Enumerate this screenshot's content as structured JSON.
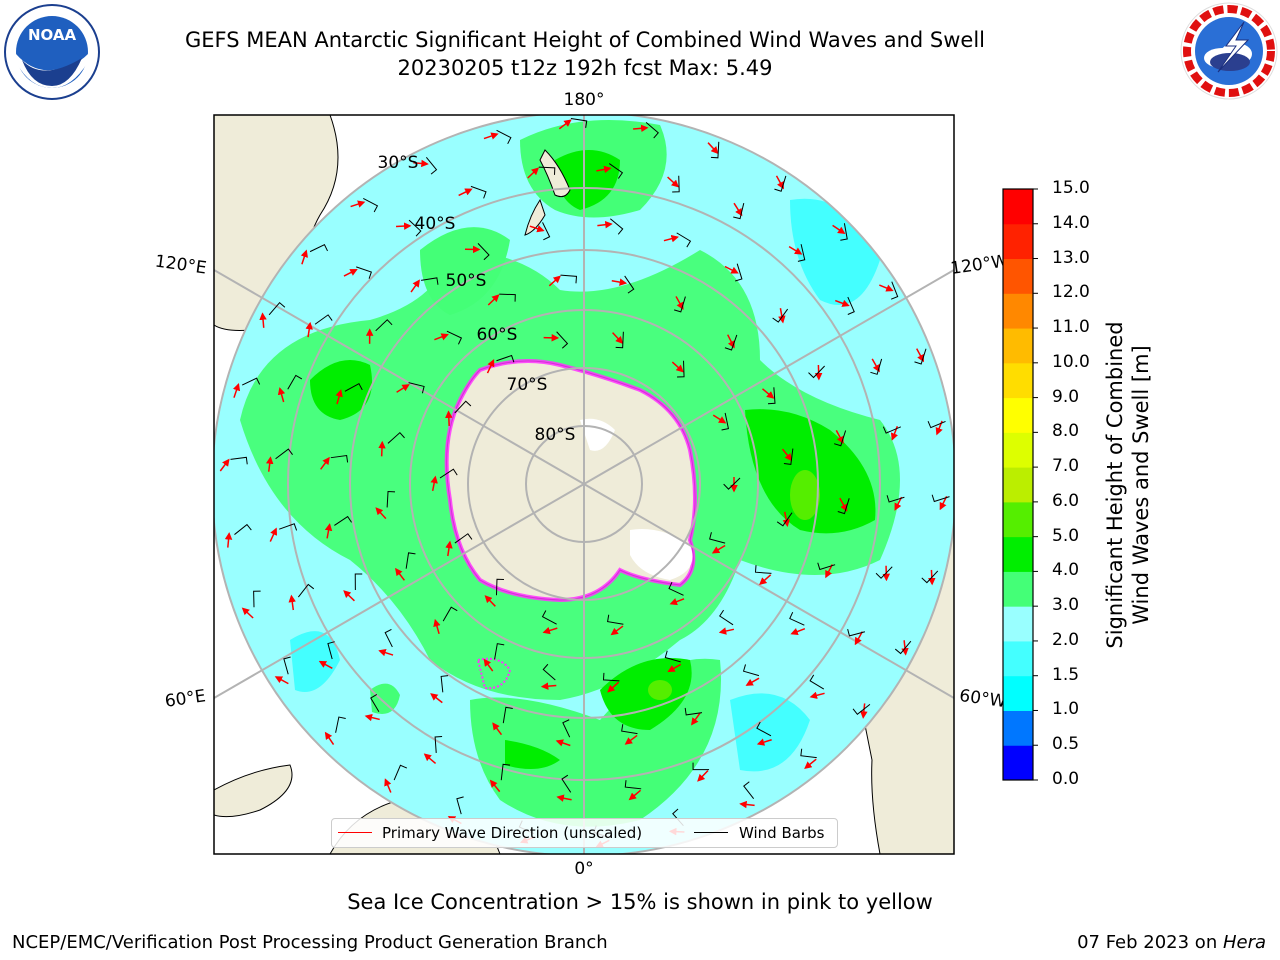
{
  "header": {
    "title_line1": "GEFS MEAN Antarctic Significant Height of Combined Wind Waves and Swell",
    "title_line2": "20230205 t12z 192h fcst   Max: 5.49"
  },
  "logos": {
    "left": {
      "label": "NOAA",
      "ring_text": "NATIONAL OCEANIC AND ATMOSPHERIC ADMINISTRATION • U.S. DEPARTMENT OF COMMERCE"
    },
    "right": {
      "ring_text": "NATIONAL WEATHER SERVICE"
    }
  },
  "map": {
    "longitude_labels": {
      "top": "180°",
      "bottom": "0°",
      "upper_left": "120°E",
      "lower_left": "60°E",
      "upper_right": "120°W",
      "lower_right": "60°W"
    },
    "latitude_labels": [
      "30°S",
      "40°S",
      "50°S",
      "60°S",
      "70°S",
      "80°S"
    ],
    "legend": {
      "wave": "Primary Wave Direction (unscaled)",
      "wind": "Wind Barbs",
      "wave_color": "#ff0000",
      "wind_color": "#000000"
    }
  },
  "colorbar": {
    "title_line1": "Significant Height of Combined",
    "title_line2": "Wind Waves and Swell [m]",
    "ticks": [
      "0.0",
      "0.5",
      "1.0",
      "1.5",
      "2.0",
      "3.0",
      "4.0",
      "5.0",
      "6.0",
      "7.0",
      "8.0",
      "9.0",
      "10.0",
      "11.0",
      "12.0",
      "13.0",
      "14.0",
      "15.0"
    ],
    "colors": [
      "#0000ff",
      "#0077ff",
      "#00ffff",
      "#44ffff",
      "#99ffff",
      "#44ff77",
      "#00ee00",
      "#55ee00",
      "#bbee00",
      "#ddff00",
      "#ffff00",
      "#ffdd00",
      "#ffbb00",
      "#ff8800",
      "#ff5500",
      "#ff2200",
      "#ff0000"
    ]
  },
  "caption": "Sea Ice Concentration > 15% is shown in pink to yellow",
  "footer": {
    "left": "NCEP/EMC/Verification Post Processing Product Generation Branch",
    "right_prefix": "07 Feb 2023 on ",
    "right_host": "Hera"
  },
  "colors": {
    "land": "#efecd9",
    "ocean_low": "#99ffff",
    "wave_arrow": "#ff0000",
    "ice_edge": "#ff33ff"
  }
}
